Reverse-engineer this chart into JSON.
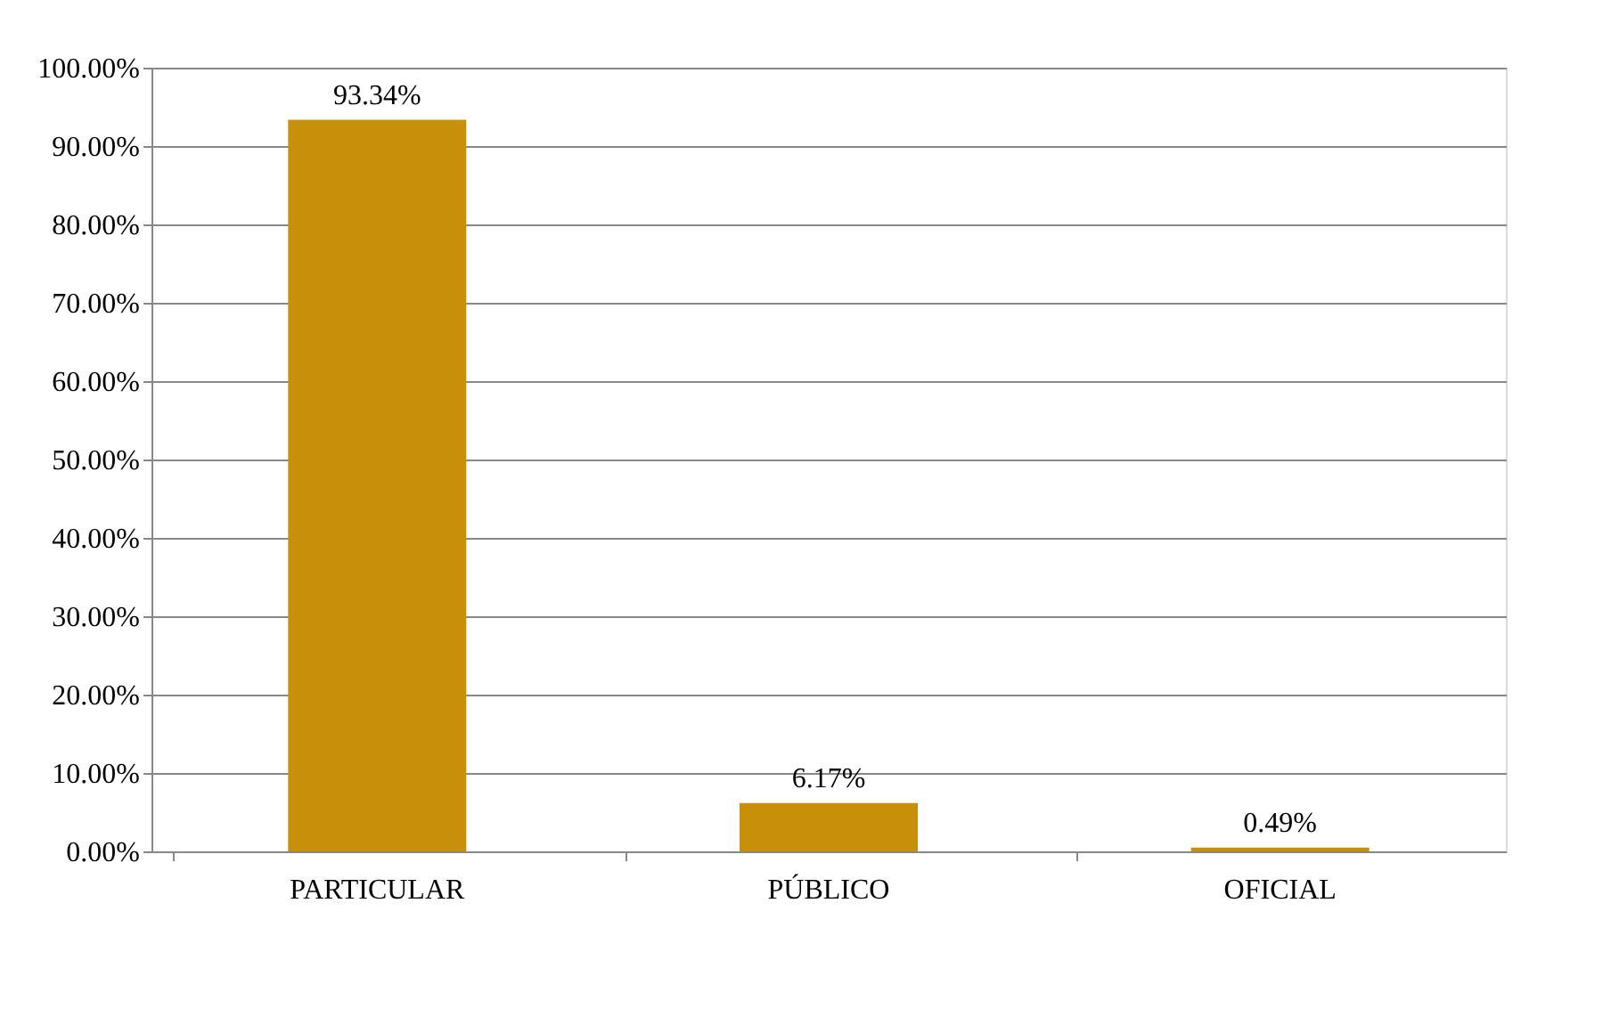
{
  "chart_data": {
    "type": "bar",
    "categories": [
      "PARTICULAR",
      "PÚBLICO",
      "OFICIAL"
    ],
    "values": [
      93.34,
      6.17,
      0.49
    ],
    "value_labels": [
      "93.34%",
      "6.17%",
      "0.49%"
    ],
    "color": "#c8900a",
    "ylim": [
      0,
      100
    ],
    "yticks": [
      {
        "value": 0,
        "label": "0.00%"
      },
      {
        "value": 10,
        "label": "10.00%"
      },
      {
        "value": 20,
        "label": "20.00%"
      },
      {
        "value": 30,
        "label": "30.00%"
      },
      {
        "value": 40,
        "label": "40.00%"
      },
      {
        "value": 50,
        "label": "50.00%"
      },
      {
        "value": 60,
        "label": "60.00%"
      },
      {
        "value": 70,
        "label": "70.00%"
      },
      {
        "value": 80,
        "label": "80.00%"
      },
      {
        "value": 90,
        "label": "90.00%"
      },
      {
        "value": 100,
        "label": "100.00%"
      }
    ],
    "grid": "y"
  }
}
